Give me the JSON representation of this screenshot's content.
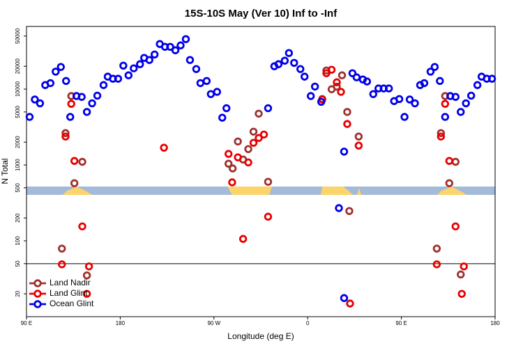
{
  "chart_data": {
    "type": "scatter",
    "title": "15S-10S May (Ver 10)   Inf to -Inf",
    "x_label": "Longitude (deg E)",
    "y_label": "N Total",
    "xlim": [
      90,
      540
    ],
    "xticks": [
      {
        "value": 90,
        "label": "90 E"
      },
      180,
      {
        "value": 270,
        "label": "90 W"
      },
      {
        "value": 360,
        "label": "0"
      },
      {
        "value": 450,
        "label": "90 E"
      },
      {
        "value": 540,
        "label": "180"
      }
    ],
    "ylim": [
      10,
      67000
    ],
    "yscale": "log",
    "yticks": [
      20,
      50,
      100,
      200,
      500,
      1000,
      2000,
      5000,
      10000,
      20000,
      50000
    ],
    "hline": 50,
    "grid": false,
    "legend": "lower left",
    "series": [
      {
        "name": "Land Nadir",
        "color": "#a0302e",
        "x": [
          133,
          127.5,
          136,
          143.6,
          124,
          148,
          284,
          288,
          293,
          298,
          303,
          308,
          313,
          322,
          374,
          383,
          388,
          393,
          378,
          398,
          409,
          400,
          484,
          488,
          492,
          496,
          502,
          507
        ],
        "values": [
          8100,
          2630,
          575,
          1100,
          79,
          35,
          1040,
          900,
          2040,
          1180,
          1620,
          2750,
          4750,
          600,
          7400,
          9960,
          10800,
          15200,
          17600,
          5000,
          2370,
          247,
          79,
          2630,
          8100,
          575,
          1100,
          36
        ]
      },
      {
        "name": "Land Glint",
        "color": "#e80000",
        "x": [
          127.5,
          133,
          136,
          143.6,
          124,
          150,
          148,
          222,
          284,
          287.5,
          293,
          298,
          303,
          308,
          313,
          318,
          322,
          374,
          378,
          383,
          388,
          392,
          398,
          409,
          400.7,
          484,
          488,
          492,
          496,
          502,
          510,
          508
        ],
        "values": [
          2370,
          6400,
          1130,
          155,
          49,
          46,
          20,
          1690,
          1400,
          590,
          1260,
          106,
          1080,
          1960,
          2270,
          2520,
          208,
          7300,
          16200,
          18000,
          12300,
          9200,
          3470,
          1800,
          14.9,
          49,
          2370,
          6400,
          1130,
          155,
          46,
          20
        ]
      },
      {
        "name": "Ocean Glint",
        "color": "#0000e8",
        "x": [
          93,
          98,
          103,
          108,
          113,
          118,
          123,
          128,
          132,
          138,
          143,
          148,
          153,
          158,
          164,
          168,
          173,
          178,
          183,
          188,
          193,
          199,
          203,
          208,
          213,
          218,
          223,
          228,
          233,
          238,
          243,
          247,
          253,
          257,
          263,
          267,
          273,
          278,
          282,
          322,
          328,
          332,
          338,
          342,
          347,
          353,
          357,
          363,
          367,
          373,
          390,
          395,
          395,
          403,
          407,
          413,
          417,
          423,
          428,
          433,
          438,
          443,
          448,
          453,
          458,
          463,
          468,
          472,
          478,
          482,
          487,
          492,
          497,
          502,
          507,
          512,
          517,
          523,
          527,
          532,
          537
        ],
        "values": [
          4300,
          7300,
          6500,
          11300,
          12000,
          17000,
          19600,
          12800,
          4300,
          8100,
          7900,
          5000,
          6500,
          8200,
          11300,
          14600,
          13700,
          13700,
          20400,
          15200,
          18800,
          21300,
          25800,
          24200,
          28600,
          39300,
          36100,
          36100,
          32500,
          37700,
          45600,
          24200,
          18400,
          12000,
          12800,
          8600,
          9200,
          4200,
          5600,
          5600,
          20000,
          21300,
          23700,
          29900,
          22200,
          18400,
          14600,
          8100,
          10800,
          6800,
          270,
          1500,
          17.6,
          16200,
          14300,
          13400,
          12600,
          8600,
          10200,
          10200,
          10200,
          6950,
          7400,
          4300,
          7300,
          6500,
          11300,
          12000,
          17000,
          19600,
          12800,
          4300,
          8100,
          7900,
          5000,
          6500,
          8200,
          11300,
          14600,
          13700,
          13700
        ]
      }
    ]
  }
}
